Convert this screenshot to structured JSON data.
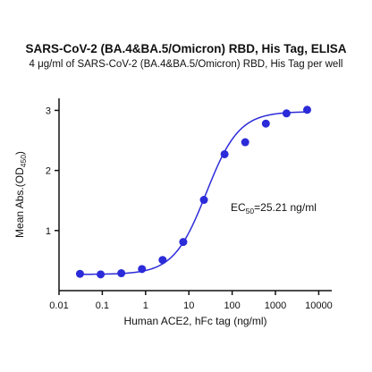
{
  "chart_data": {
    "type": "scatter",
    "title": "SARS-CoV-2 (BA.4&BA.5/Omicron) RBD, His Tag, ELISA",
    "subtitle": "4 μg/ml of SARS-CoV-2 (BA.4&BA.5/Omicron) RBD, His Tag per well",
    "xlabel": "Human ACE2, hFc tag (ng/ml)",
    "ylabel_main": "Mean Abs.(OD",
    "ylabel_sub": "450",
    "ylabel_end": ")",
    "x_scale": "log",
    "xlim": [
      0.01,
      20000
    ],
    "ylim": [
      0,
      3.2
    ],
    "x_ticks": [
      "0.01",
      "0.1",
      "1",
      "10",
      "100",
      "1000",
      "10000"
    ],
    "y_ticks": [
      "1",
      "2",
      "3"
    ],
    "grid": false,
    "annotation_main": "EC",
    "annotation_sub": "50",
    "annotation_value": "=25.21 ng/ml",
    "colors": {
      "points": "#2b2bd9",
      "curve": "#2b2bd9",
      "axis": "#111111"
    },
    "fit": {
      "bottom": 0.27,
      "top": 2.98,
      "ec50": 25.21,
      "hill": 1.15
    },
    "series": [
      {
        "x": [
          0.0305,
          0.0916,
          0.2747,
          0.824,
          2.472,
          7.416,
          22.25,
          66.74,
          200.2,
          600.7,
          1802,
          5406
        ],
        "y": [
          0.28,
          0.27,
          0.29,
          0.36,
          0.51,
          0.81,
          1.51,
          2.27,
          2.47,
          2.78,
          2.95,
          3.01
        ]
      }
    ]
  }
}
